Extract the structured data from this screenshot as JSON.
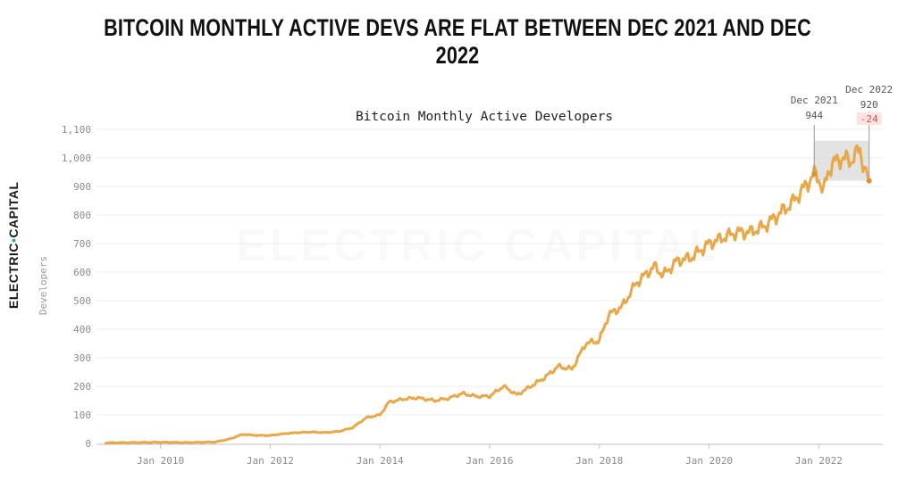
{
  "headline": "BITCOIN MONTHLY ACTIVE DEVS ARE FLAT BETWEEN DEC 2021 AND DEC 2022",
  "brand": {
    "logo_text": "ELECTRIC CAPITAL",
    "watermark_text": "ELECTRIC CAPITAL"
  },
  "chart_data": {
    "type": "line",
    "title": "Bitcoin Monthly Active Developers",
    "xlabel": "",
    "ylabel": "Developers",
    "ylim": [
      0,
      1100
    ],
    "xlim": [
      "2008-11",
      "2023-03"
    ],
    "yticks": [
      "0",
      "100",
      "200",
      "300",
      "400",
      "500",
      "600",
      "700",
      "800",
      "900",
      "1,000",
      "1,100"
    ],
    "xticks": [
      {
        "date": "2010-01",
        "label": "Jan 2010"
      },
      {
        "date": "2012-01",
        "label": "Jan 2012"
      },
      {
        "date": "2014-01",
        "label": "Jan 2014"
      },
      {
        "date": "2016-01",
        "label": "Jan 2016"
      },
      {
        "date": "2018-01",
        "label": "Jan 2018"
      },
      {
        "date": "2020-01",
        "label": "Jan 2020"
      },
      {
        "date": "2022-01",
        "label": "Jan 2022"
      }
    ],
    "grid": true,
    "line_color": "#e8a84a",
    "series": [
      {
        "x": [
          "2009-01",
          "2010-01",
          "2010-07",
          "2011-01",
          "2011-04",
          "2011-07",
          "2011-10",
          "2012-01",
          "2012-04",
          "2012-07",
          "2012-10",
          "2013-01",
          "2013-04",
          "2013-07",
          "2013-10",
          "2014-01",
          "2014-03",
          "2014-06",
          "2014-09",
          "2015-01",
          "2015-04",
          "2015-07",
          "2015-10",
          "2016-01",
          "2016-04",
          "2016-07",
          "2016-10",
          "2017-01",
          "2017-04",
          "2017-07",
          "2017-10",
          "2018-01",
          "2018-03",
          "2018-06",
          "2018-09",
          "2019-01",
          "2019-03",
          "2019-06",
          "2019-09",
          "2020-01",
          "2020-04",
          "2020-07",
          "2020-10",
          "2021-01",
          "2021-04",
          "2021-07",
          "2021-10",
          "2021-12",
          "2022-01",
          "2022-02",
          "2022-03",
          "2022-04",
          "2022-06",
          "2022-08",
          "2022-10",
          "2022-11",
          "2022-12"
        ],
        "y": [
          2,
          4,
          3,
          5,
          15,
          32,
          28,
          28,
          34,
          38,
          40,
          38,
          42,
          55,
          90,
          100,
          145,
          155,
          160,
          150,
          158,
          175,
          165,
          165,
          200,
          170,
          200,
          230,
          270,
          260,
          350,
          360,
          450,
          480,
          560,
          620,
          590,
          640,
          650,
          700,
          720,
          740,
          740,
          760,
          800,
          840,
          900,
          944,
          930,
          880,
          950,
          980,
          1000,
          990,
          1030,
          960,
          920
        ]
      }
    ],
    "annotations": [
      {
        "date": "2021-12",
        "value": 944,
        "label": "Dec 2021",
        "value_label": "944"
      },
      {
        "date": "2022-12",
        "value": 920,
        "label": "Dec 2022",
        "value_label": "920",
        "delta_label": "-24"
      }
    ],
    "highlight_range": {
      "from": "2021-12",
      "to": "2022-12",
      "y_from": 920,
      "y_to": 1060
    }
  }
}
